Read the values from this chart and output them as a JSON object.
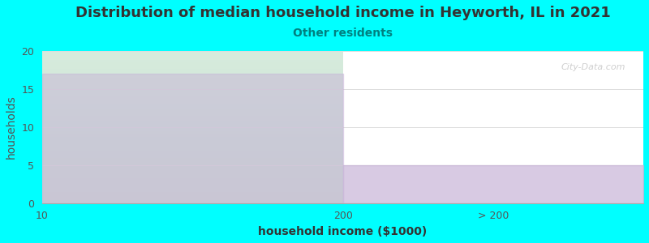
{
  "title": "Distribution of median household income in Heyworth, IL in 2021",
  "subtitle": "Other residents",
  "xlabel": "household income ($1000)",
  "ylabel": "households",
  "background_color": "#00FFFF",
  "bar1_value": 17,
  "bar2_value": 5,
  "bar1_x_label": "10",
  "bar2_x_label": "> 200",
  "mid_x_label": "200",
  "ylim": [
    0,
    20
  ],
  "yticks": [
    0,
    5,
    10,
    15,
    20
  ],
  "bar_purple_color": "#c8b4d8",
  "subtitle_color": "#008080",
  "watermark": "City-Data.com",
  "title_fontsize": 13,
  "subtitle_fontsize": 10,
  "axis_label_fontsize": 10,
  "tick_fontsize": 9
}
